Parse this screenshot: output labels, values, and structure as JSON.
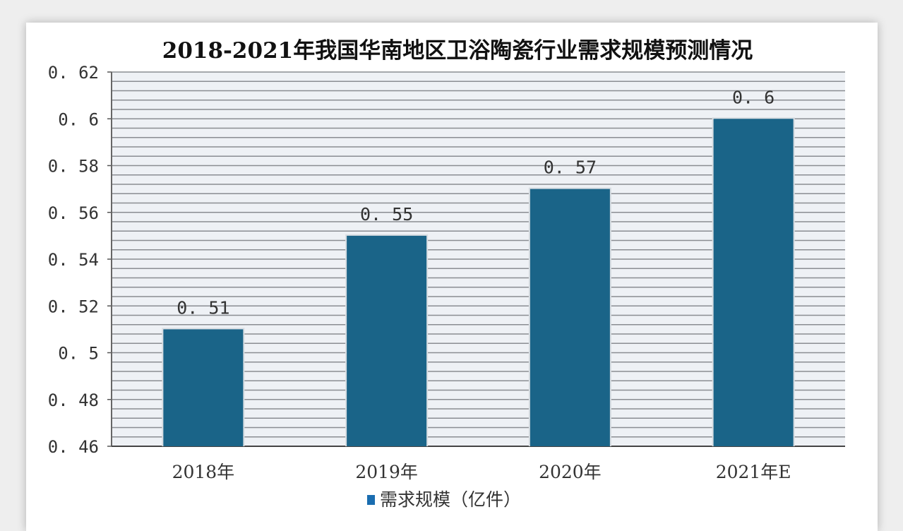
{
  "chart_data": {
    "type": "bar",
    "title": "2018-2021年我国华南地区卫浴陶瓷行业需求规模预测情况",
    "categories": [
      "2018年",
      "2019年",
      "2020年",
      "2021年E"
    ],
    "series": [
      {
        "name": "需求规模（亿件）",
        "values": [
          0.51,
          0.55,
          0.57,
          0.6
        ]
      }
    ],
    "data_labels": [
      "0.51",
      "0.55",
      "0.57",
      "0.6"
    ],
    "yticks": [
      "0.46",
      "0.48",
      "0.5",
      "0.52",
      "0.54",
      "0.56",
      "0.58",
      "0.6",
      "0.62"
    ],
    "ylim": [
      0.46,
      0.62
    ],
    "minor_grid_step": 0.004,
    "grid": true,
    "legend_position": "bottom",
    "colors": {
      "bar": "#1a6488",
      "plot_bg": "#eef1f5",
      "grid": "#8a8d92",
      "legend_marker": "#1a6db0"
    }
  }
}
